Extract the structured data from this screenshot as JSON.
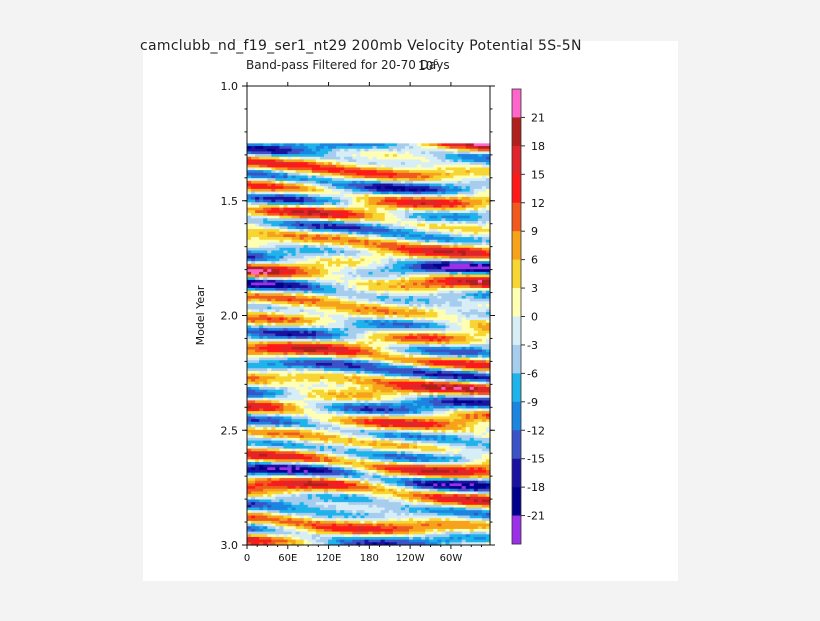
{
  "chart_data": {
    "type": "heatmap",
    "title": "camclubb_nd_f19_ser1_nt29 200mb Velocity Potential 5S-5N",
    "subtitle": "Band-pass Filtered for 20-70 Days",
    "units_base": "10",
    "units_exp": "6",
    "xlabel": "",
    "ylabel": "Model Year",
    "x_ticks": [
      "0",
      "60E",
      "120E",
      "180",
      "120W",
      "60W"
    ],
    "x_tick_values": [
      0,
      60,
      120,
      180,
      240,
      300
    ],
    "xlim": [
      0,
      357.5
    ],
    "y_ticks": [
      "1.0",
      "1.5",
      "2.0",
      "2.5",
      "3.0"
    ],
    "y_tick_values": [
      1.0,
      1.5,
      2.0,
      2.5,
      3.0
    ],
    "ylim": [
      1.0,
      3.0
    ],
    "data_start_year": 1.25,
    "colorbar_labels": [
      "21",
      "18",
      "15",
      "12",
      "9",
      "6",
      "3",
      "0",
      "-3",
      "-6",
      "-9",
      "-12",
      "-15",
      "-18",
      "-21"
    ],
    "colorbar_colors": [
      "#ff66cc",
      "#b0201f",
      "#e0262a",
      "#ff1a1a",
      "#f05a1e",
      "#f7a21b",
      "#f7d634",
      "#ffffb3",
      "#d8eef7",
      "#a6cdee",
      "#1eb3ea",
      "#1b85e0",
      "#3a53c7",
      "#1b13a0",
      "#00008b",
      "#9c2fe8"
    ]
  }
}
